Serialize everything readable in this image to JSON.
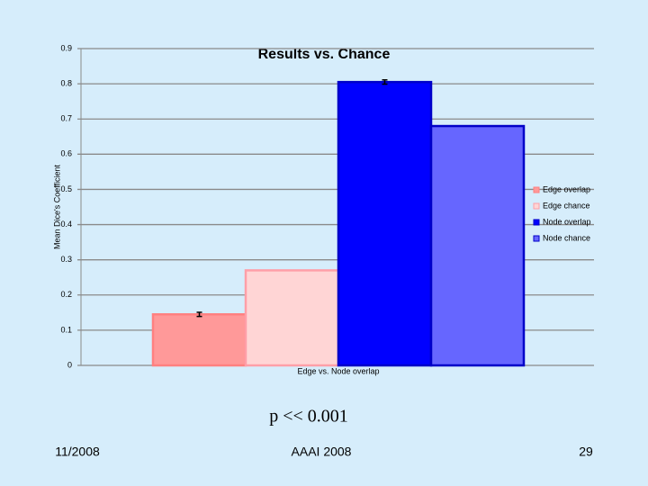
{
  "chart_data": {
    "type": "bar",
    "title": "Results vs. Chance",
    "ylabel": "Mean Dice's Coefficient",
    "categories": [
      "Edge vs. Node overlap"
    ],
    "series": [
      {
        "name": "Edge overlap",
        "color": "#ff9999",
        "border": "#ff8080",
        "values": [
          0.145
        ],
        "errors": [
          0.006
        ]
      },
      {
        "name": "Edge chance",
        "color": "#ffd5d5",
        "border": "#ff9fa8",
        "values": [
          0.27
        ],
        "errors": [
          null
        ]
      },
      {
        "name": "Node overlap",
        "color": "#0000ff",
        "border": "#0000c8",
        "values": [
          0.805
        ],
        "errors": [
          0.006
        ]
      },
      {
        "name": "Node chance",
        "color": "#6666ff",
        "border": "#0000c8",
        "values": [
          0.68
        ],
        "errors": [
          null
        ]
      }
    ],
    "ylim": [
      0,
      0.9
    ],
    "yticks": [
      0,
      0.1,
      0.2,
      0.3,
      0.4,
      0.5,
      0.6,
      0.7,
      0.8,
      0.9
    ],
    "grid": true,
    "legend": "right"
  },
  "slide": {
    "note": "p << 0.001",
    "date": "11/2008",
    "venue": "AAAI 2008",
    "page": "29"
  }
}
